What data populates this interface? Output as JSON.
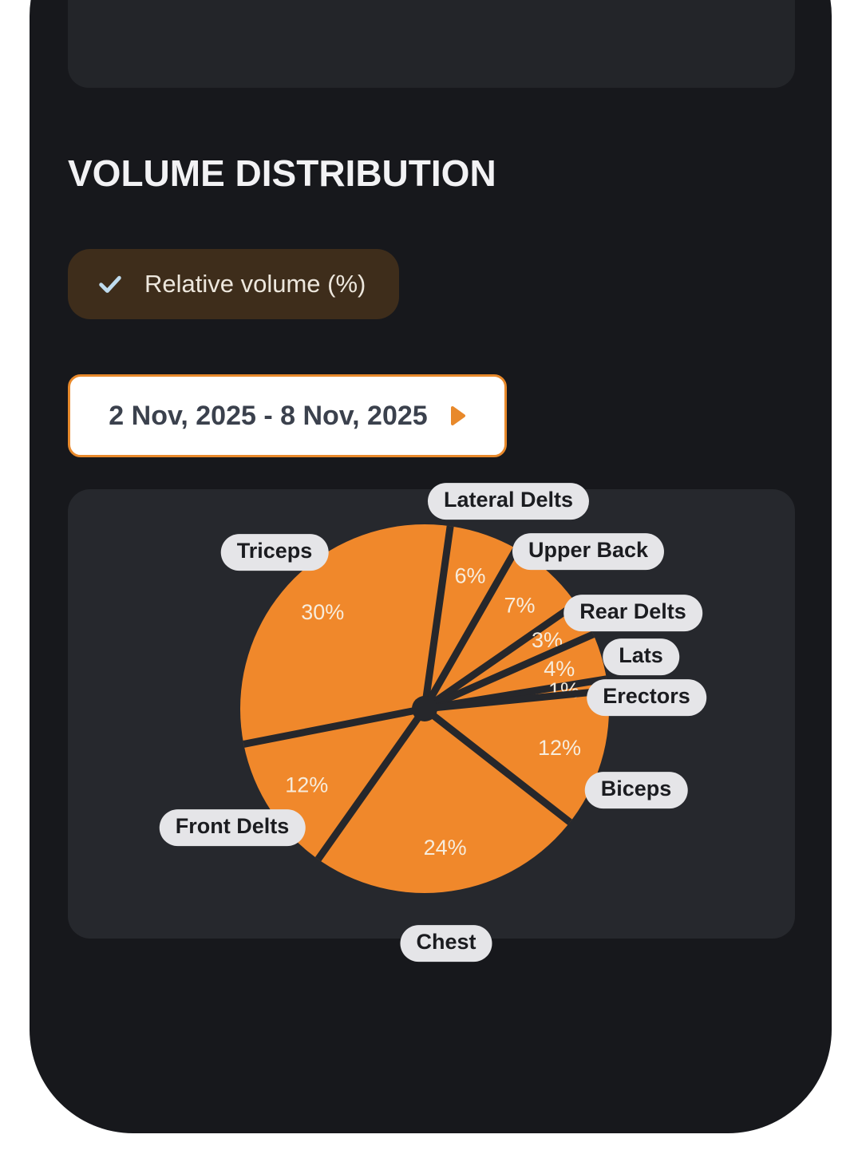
{
  "header": {
    "title": "VOLUME DISTRIBUTION"
  },
  "filter_chip": {
    "label": "Relative volume (%)",
    "icon": "check-icon",
    "bg_color": "#3E2D1B",
    "check_color": "#BFDCEF"
  },
  "date_picker": {
    "value": "2 Nov, 2025 - 8 Nov, 2025",
    "icon": "chevron-right-icon",
    "accent_color": "#E8892B"
  },
  "chart_data": {
    "type": "pie",
    "title": "VOLUME DISTRIBUTION",
    "unit": "%",
    "slices": [
      {
        "label": "Lateral Delts",
        "value": 6
      },
      {
        "label": "Upper Back",
        "value": 7
      },
      {
        "label": "Rear Delts",
        "value": 3
      },
      {
        "label": "Lats",
        "value": 4
      },
      {
        "label": "Erectors",
        "value": 1
      },
      {
        "label": "Biceps",
        "value": 12
      },
      {
        "label": "Chest",
        "value": 24
      },
      {
        "label": "Front Delts",
        "value": 12
      },
      {
        "label": "Triceps",
        "value": 30
      }
    ],
    "start_angle_deg": 8,
    "legend_position": "around",
    "colors": {
      "slice": "#F0882B",
      "divider": "#26272B",
      "value_label": "#F8F1E4",
      "tag_bg": "#E5E5E8",
      "tag_text": "#1B1C20",
      "card_bg": "#26282D"
    }
  },
  "theme": {
    "page_bg": "#FFFFFF",
    "phone_bg": "#17181C",
    "card_bg": "#232529",
    "title_color": "#F2F2F4"
  }
}
